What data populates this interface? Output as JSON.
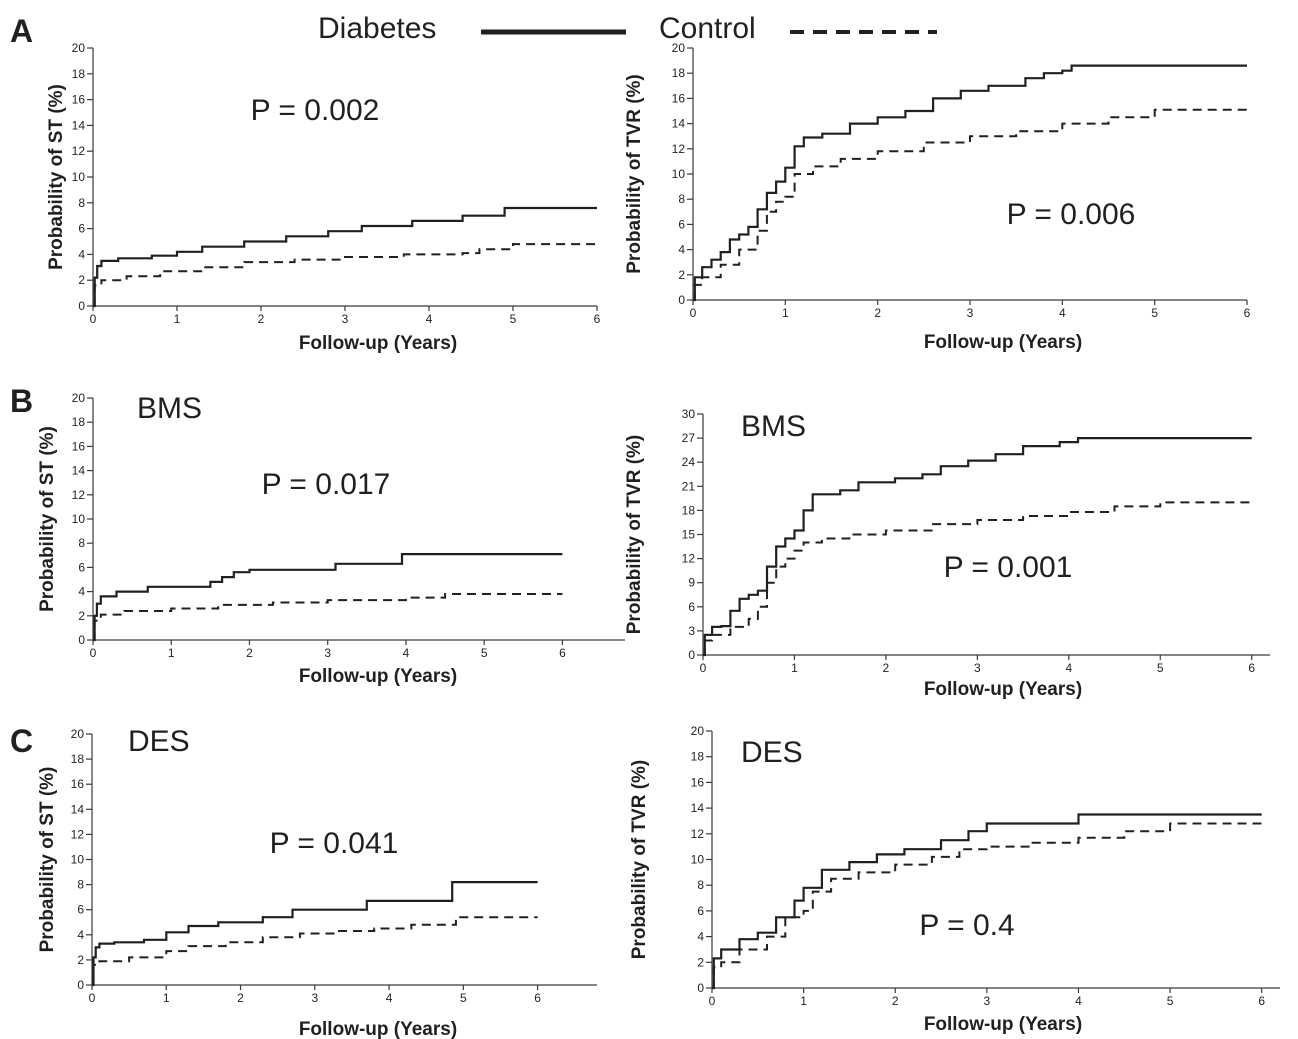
{
  "panel_letters": [
    "A",
    "B",
    "C"
  ],
  "legend": {
    "diabetes_label": "Diabetes",
    "control_label": "Control",
    "diabetes_style": "solid",
    "control_style": "dashed"
  },
  "colors": {
    "ink": "#231f20",
    "axis": "#3a3a3a",
    "background": "#ffffff"
  },
  "chart_data": [
    {
      "id": "A-ST",
      "type": "line",
      "step": true,
      "panel": "A",
      "subtitle": "",
      "annotation": "P = 0.002",
      "xlabel": "Follow-up (Years)",
      "ylabel": "Probability of ST (%)",
      "xlim": [
        0,
        6
      ],
      "ylim": [
        0,
        20
      ],
      "xticks": [
        0,
        1,
        2,
        3,
        4,
        5,
        6
      ],
      "yticks": [
        0,
        2,
        4,
        6,
        8,
        10,
        12,
        14,
        16,
        18,
        20
      ],
      "series": [
        {
          "name": "Diabetes",
          "style": "solid",
          "x": [
            0,
            0.02,
            0.05,
            0.1,
            0.3,
            0.7,
            1.0,
            1.3,
            1.8,
            2.3,
            2.8,
            3.2,
            3.8,
            4.4,
            4.9,
            6.0
          ],
          "y": [
            0,
            2.2,
            3.1,
            3.5,
            3.7,
            3.9,
            4.2,
            4.6,
            5.0,
            5.4,
            5.8,
            6.2,
            6.6,
            7.0,
            7.6,
            7.6
          ]
        },
        {
          "name": "Control",
          "style": "dashed",
          "x": [
            0,
            0.02,
            0.1,
            0.4,
            0.8,
            1.3,
            1.8,
            2.4,
            3.0,
            3.7,
            4.4,
            4.6,
            5.0,
            6.0
          ],
          "y": [
            0,
            1.6,
            2.0,
            2.3,
            2.7,
            3.0,
            3.4,
            3.6,
            3.8,
            4.0,
            4.1,
            4.4,
            4.8,
            4.8
          ]
        }
      ]
    },
    {
      "id": "A-TVR",
      "type": "line",
      "step": true,
      "panel": "A",
      "subtitle": "",
      "annotation": "P = 0.006",
      "xlabel": "Follow-up (Years)",
      "ylabel": "Probability of TVR (%)",
      "xlim": [
        0,
        6
      ],
      "ylim": [
        0,
        20
      ],
      "xticks": [
        0,
        1,
        2,
        3,
        4,
        5,
        6
      ],
      "yticks": [
        0,
        2,
        4,
        6,
        8,
        10,
        12,
        14,
        16,
        18,
        20
      ],
      "series": [
        {
          "name": "Diabetes",
          "style": "solid",
          "x": [
            0,
            0.02,
            0.1,
            0.2,
            0.3,
            0.4,
            0.5,
            0.6,
            0.7,
            0.8,
            0.9,
            1.0,
            1.1,
            1.2,
            1.4,
            1.7,
            2.0,
            2.3,
            2.6,
            2.9,
            3.2,
            3.6,
            3.8,
            4.0,
            4.1,
            4.5,
            5.0,
            6.0
          ],
          "y": [
            0,
            1.8,
            2.6,
            3.2,
            3.8,
            4.8,
            5.2,
            5.8,
            7.2,
            8.5,
            9.4,
            10.5,
            12.2,
            12.9,
            13.2,
            14.0,
            14.5,
            15.0,
            16.0,
            16.6,
            17.0,
            17.6,
            18.0,
            18.2,
            18.6,
            18.6,
            18.6,
            18.6
          ]
        },
        {
          "name": "Control",
          "style": "dashed",
          "x": [
            0,
            0.02,
            0.1,
            0.3,
            0.5,
            0.7,
            0.8,
            0.9,
            1.0,
            1.1,
            1.3,
            1.6,
            2.0,
            2.5,
            3.0,
            3.5,
            4.0,
            4.5,
            5.0,
            6.0
          ],
          "y": [
            0,
            1.2,
            1.8,
            2.8,
            4.0,
            5.5,
            7.0,
            7.8,
            8.2,
            10.0,
            10.6,
            11.2,
            11.8,
            12.5,
            13.0,
            13.4,
            14.0,
            14.5,
            15.1,
            15.1
          ]
        }
      ]
    },
    {
      "id": "B-ST",
      "type": "line",
      "step": true,
      "panel": "B",
      "subtitle": "BMS",
      "annotation": "P = 0.017",
      "xlabel": "Follow-up (Years)",
      "ylabel": "Probability of ST (%)",
      "xlim": [
        0,
        6.8
      ],
      "ylim": [
        0,
        20
      ],
      "xticks": [
        0,
        1,
        2,
        3,
        4,
        5,
        6
      ],
      "yticks": [
        0,
        2,
        4,
        6,
        8,
        10,
        12,
        14,
        16,
        18,
        20
      ],
      "series": [
        {
          "name": "Diabetes",
          "style": "solid",
          "x": [
            0,
            0.02,
            0.05,
            0.1,
            0.3,
            0.7,
            1.5,
            1.65,
            1.8,
            2.0,
            3.1,
            3.95,
            6.0
          ],
          "y": [
            0,
            2.0,
            3.0,
            3.6,
            4.0,
            4.4,
            4.8,
            5.2,
            5.6,
            5.8,
            6.3,
            7.1,
            7.1
          ]
        },
        {
          "name": "Control",
          "style": "dashed",
          "x": [
            0,
            0.02,
            0.1,
            0.4,
            1.0,
            1.6,
            2.3,
            3.0,
            4.0,
            4.5,
            6.0
          ],
          "y": [
            0,
            1.6,
            2.1,
            2.4,
            2.6,
            2.9,
            3.1,
            3.3,
            3.5,
            3.8,
            3.8
          ]
        }
      ]
    },
    {
      "id": "B-TVR",
      "type": "line",
      "step": true,
      "panel": "B",
      "subtitle": "BMS",
      "annotation": "P = 0.001",
      "xlabel": "Follow-up (Years)",
      "ylabel": "Probability of TVR  (%)",
      "xlim": [
        0,
        6.2
      ],
      "ylim": [
        0,
        30
      ],
      "xticks": [
        0,
        1,
        2,
        3,
        4,
        5,
        6
      ],
      "yticks": [
        0,
        3,
        6,
        9,
        12,
        15,
        18,
        21,
        24,
        27,
        30
      ],
      "series": [
        {
          "name": "Diabetes",
          "style": "solid",
          "x": [
            0,
            0.02,
            0.1,
            0.2,
            0.3,
            0.4,
            0.5,
            0.6,
            0.7,
            0.8,
            0.9,
            1.0,
            1.1,
            1.2,
            1.5,
            1.7,
            2.1,
            2.4,
            2.6,
            2.9,
            3.2,
            3.5,
            3.9,
            4.1,
            5.0,
            6.0
          ],
          "y": [
            0,
            2.5,
            3.5,
            3.6,
            5.5,
            7.0,
            7.5,
            8.0,
            11.0,
            13.5,
            14.5,
            15.5,
            18.0,
            20.0,
            20.5,
            21.5,
            22.0,
            22.5,
            23.5,
            24.2,
            25.0,
            26.0,
            26.5,
            27.0,
            27.0,
            27.0
          ]
        },
        {
          "name": "Control",
          "style": "dashed",
          "x": [
            0,
            0.02,
            0.1,
            0.3,
            0.5,
            0.6,
            0.7,
            0.8,
            0.9,
            1.0,
            1.1,
            1.3,
            1.6,
            2.0,
            2.5,
            3.0,
            3.5,
            4.0,
            4.5,
            5.0,
            6.0
          ],
          "y": [
            0,
            1.8,
            2.5,
            3.5,
            4.5,
            6.0,
            9.0,
            11.0,
            12.0,
            13.0,
            14.0,
            14.5,
            15.0,
            15.5,
            16.3,
            16.8,
            17.3,
            17.8,
            18.5,
            19.0,
            19.0
          ]
        }
      ]
    },
    {
      "id": "C-ST",
      "type": "line",
      "step": true,
      "panel": "C",
      "subtitle": "DES",
      "annotation": "P = 0.041",
      "xlabel": "Follow-up (Years)",
      "ylabel": "Probability of ST (%)",
      "xlim": [
        0,
        6.8
      ],
      "ylim": [
        0,
        20
      ],
      "xticks": [
        0,
        1,
        2,
        3,
        4,
        5,
        6
      ],
      "yticks": [
        0,
        2,
        4,
        6,
        8,
        10,
        12,
        14,
        16,
        18,
        20
      ],
      "series": [
        {
          "name": "Diabetes",
          "style": "solid",
          "x": [
            0,
            0.02,
            0.05,
            0.1,
            0.3,
            0.7,
            1.0,
            1.3,
            1.7,
            2.3,
            2.7,
            3.7,
            4.85,
            6.0
          ],
          "y": [
            0,
            2.2,
            3.0,
            3.3,
            3.4,
            3.6,
            4.2,
            4.7,
            5.0,
            5.4,
            6.0,
            6.7,
            8.2,
            8.2
          ]
        },
        {
          "name": "Control",
          "style": "dashed",
          "x": [
            0,
            0.02,
            0.1,
            0.5,
            1.0,
            1.3,
            1.8,
            2.3,
            2.8,
            3.3,
            3.8,
            4.3,
            4.9,
            6.0
          ],
          "y": [
            0,
            1.6,
            1.9,
            2.2,
            2.7,
            3.1,
            3.4,
            3.8,
            4.1,
            4.3,
            4.5,
            4.8,
            5.4,
            5.4
          ]
        }
      ]
    },
    {
      "id": "C-TVR",
      "type": "line",
      "step": true,
      "panel": "C",
      "subtitle": "DES",
      "annotation": "P = 0.4",
      "xlabel": "Follow-up (Years)",
      "ylabel": "Probability of TVR (%)",
      "xlim": [
        0,
        6.2
      ],
      "ylim": [
        0,
        20
      ],
      "xticks": [
        0,
        1,
        2,
        3,
        4,
        5,
        6
      ],
      "yticks": [
        0,
        2,
        4,
        6,
        8,
        10,
        12,
        14,
        16,
        18,
        20
      ],
      "series": [
        {
          "name": "Diabetes",
          "style": "solid",
          "x": [
            0,
            0.02,
            0.1,
            0.3,
            0.5,
            0.7,
            0.9,
            1.0,
            1.2,
            1.5,
            1.8,
            2.1,
            2.5,
            2.8,
            3.0,
            4.0,
            6.0
          ],
          "y": [
            0,
            2.3,
            3.0,
            3.8,
            4.3,
            5.5,
            6.8,
            7.8,
            9.2,
            9.8,
            10.4,
            10.8,
            11.5,
            12.2,
            12.8,
            13.5,
            13.5
          ]
        },
        {
          "name": "Control",
          "style": "dashed",
          "x": [
            0,
            0.02,
            0.1,
            0.3,
            0.6,
            0.8,
            1.0,
            1.1,
            1.3,
            1.6,
            2.0,
            2.4,
            2.7,
            3.0,
            3.5,
            4.0,
            4.5,
            5.0,
            6.0
          ],
          "y": [
            0,
            1.6,
            2.0,
            3.0,
            4.0,
            5.5,
            6.0,
            7.5,
            8.5,
            9.0,
            9.6,
            10.2,
            10.8,
            11.0,
            11.3,
            11.7,
            12.2,
            12.8,
            12.8
          ]
        }
      ]
    }
  ]
}
